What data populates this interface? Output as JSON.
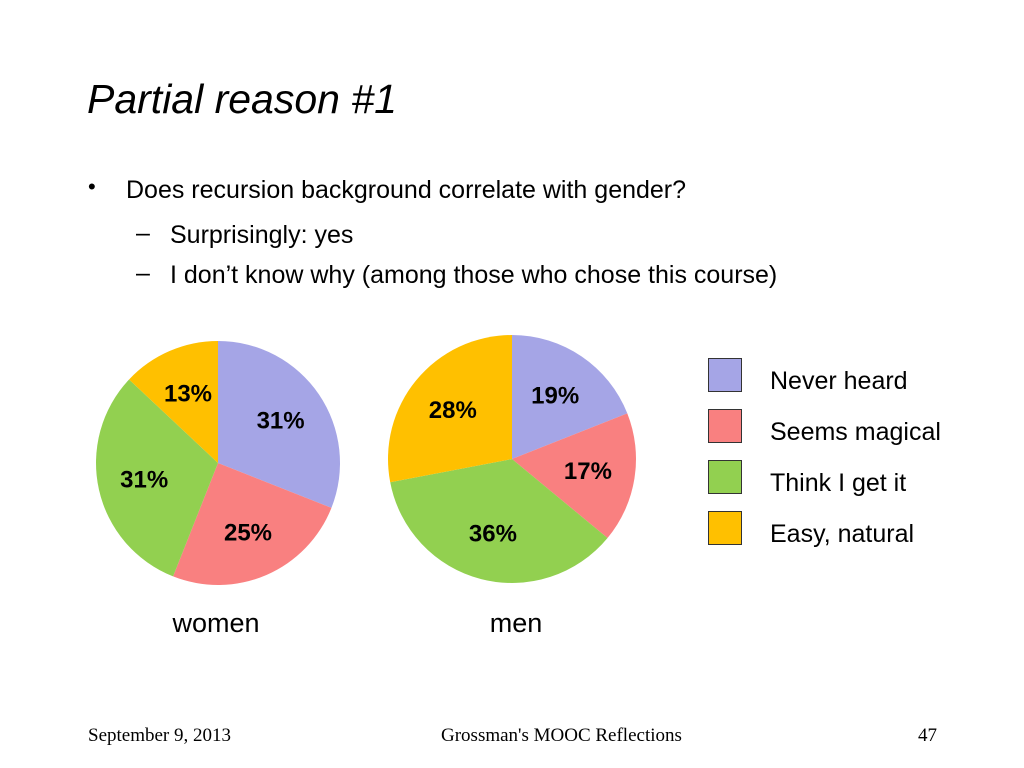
{
  "slide": {
    "title": "Partial reason #1",
    "bullet": "Does recursion background correlate with gender?",
    "sub_bullets": [
      "Surprisingly: yes",
      "I don’t know why (among those who chose this course)"
    ],
    "bullet_symbol": "•",
    "dash_symbol": "–"
  },
  "chart_data": [
    {
      "type": "pie",
      "label": "women",
      "categories": [
        "Never heard",
        "Seems magical",
        "Think I get it",
        "Easy, natural"
      ],
      "values": [
        31,
        25,
        31,
        13
      ],
      "value_labels": [
        "31%",
        "25%",
        "31%",
        "13%"
      ],
      "colors": [
        "#a5a5e6",
        "#f98080",
        "#92d050",
        "#ffc000"
      ],
      "start_angle_deg": 0,
      "direction": "clockwise"
    },
    {
      "type": "pie",
      "label": "men",
      "categories": [
        "Never heard",
        "Seems magical",
        "Think I get it",
        "Easy, natural"
      ],
      "values": [
        19,
        17,
        36,
        28
      ],
      "value_labels": [
        "19%",
        "17%",
        "36%",
        "28%"
      ],
      "colors": [
        "#a5a5e6",
        "#f98080",
        "#92d050",
        "#ffc000"
      ],
      "start_angle_deg": 0,
      "direction": "clockwise"
    }
  ],
  "legend": {
    "placement": "right",
    "items": [
      {
        "label": "Never heard",
        "color": "#a5a5e6"
      },
      {
        "label": "Seems magical",
        "color": "#f98080"
      },
      {
        "label": "Think I get it",
        "color": "#92d050"
      },
      {
        "label": "Easy, natural",
        "color": "#ffc000"
      }
    ]
  },
  "footer": {
    "date": "September 9, 2013",
    "center": "Grossman's MOOC Reflections",
    "page": "47"
  }
}
